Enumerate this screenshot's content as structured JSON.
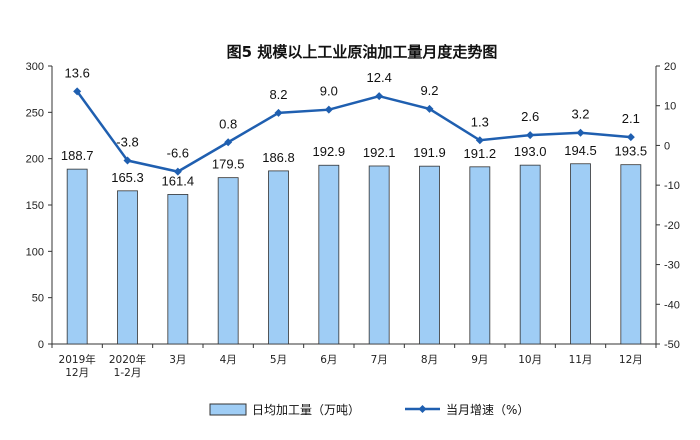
{
  "chart_data": {
    "type": "bar",
    "title": "图5  规模以上工业原油加工量月度走势图",
    "categories": [
      [
        "2019年",
        "12月"
      ],
      [
        "2020年",
        "1-2月"
      ],
      [
        "3月"
      ],
      [
        "4月"
      ],
      [
        "5月"
      ],
      [
        "6月"
      ],
      [
        "7月"
      ],
      [
        "8月"
      ],
      [
        "9月"
      ],
      [
        "10月"
      ],
      [
        "11月"
      ],
      [
        "12月"
      ]
    ],
    "series": [
      {
        "name": "日均加工量（万吨）",
        "type": "bar",
        "axis": "left",
        "color": "#9fcdf5",
        "values": [
          188.7,
          165.3,
          161.4,
          179.5,
          186.8,
          192.9,
          192.1,
          191.9,
          191.2,
          193.0,
          194.5,
          193.5
        ],
        "labels": [
          "188.7",
          "165.3",
          "161.4",
          "179.5",
          "186.8",
          "192.9",
          "192.1",
          "191.9",
          "191.2",
          "193.0",
          "194.5",
          "193.5"
        ]
      },
      {
        "name": "当月增速（%）",
        "type": "line",
        "axis": "right",
        "color": "#1f5fb0",
        "values": [
          13.6,
          -3.8,
          -6.6,
          0.8,
          8.2,
          9.0,
          12.4,
          9.2,
          1.3,
          2.6,
          3.2,
          2.1
        ],
        "labels": [
          "13.6",
          "-3.8",
          "-6.6",
          "0.8",
          "8.2",
          "9.0",
          "12.4",
          "9.2",
          "1.3",
          "2.6",
          "3.2",
          "2.1"
        ]
      }
    ],
    "y_left": {
      "min": 0,
      "max": 300,
      "ticks": [
        0,
        50,
        100,
        150,
        200,
        250,
        300
      ]
    },
    "y_right": {
      "min": -50,
      "max": 20,
      "ticks": [
        -50,
        -40,
        -30,
        -20,
        -10,
        0,
        10,
        20
      ]
    },
    "grid": false,
    "legend_position": "bottom"
  }
}
